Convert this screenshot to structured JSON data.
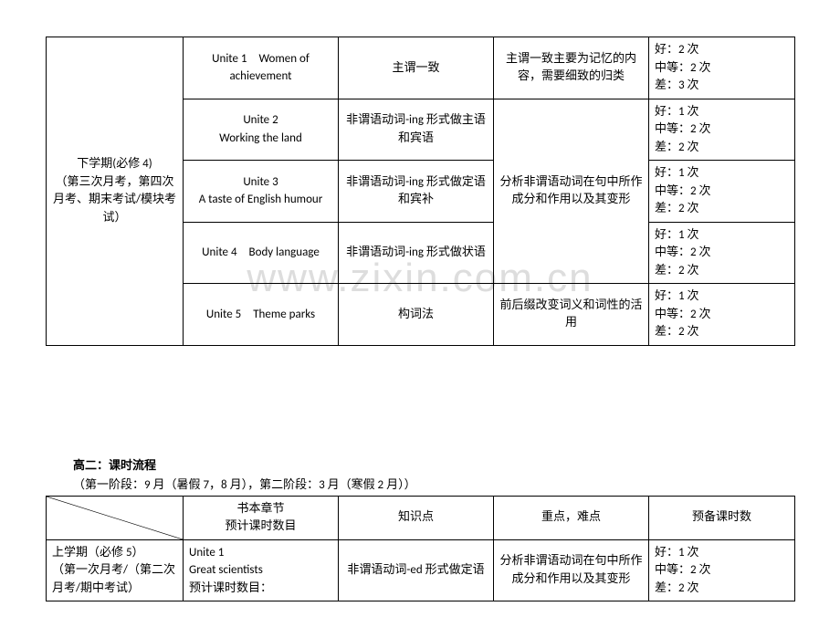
{
  "watermark": "www.zixin.com.cn",
  "table1": {
    "left_header": "下学期(必修 4)\n（第三次月考，第四次月考、期末考试/模块考试）",
    "rows": [
      {
        "unit": "Unite 1　Women of achievement",
        "point": "主谓一致",
        "note": "主谓一致主要为记忆的内容，需要细致的归类",
        "hours": "好：2 次\n中等：2 次\n差：3 次"
      },
      {
        "unit": "Unite 2\nWorking the land",
        "point": "非谓语动词-ing 形式做主语和宾语",
        "note_group": "分析非谓语动词在句中所作成分和作用以及其变形",
        "hours": "好：1 次\n中等：2 次\n差：2 次"
      },
      {
        "unit": "Unite 3\nA taste of English humour",
        "point": "非谓语动词-ing 形式做定语和宾补",
        "hours": "好：1 次\n中等：2 次\n差：2 次"
      },
      {
        "unit": "Unite 4　Body language",
        "point": "非谓语动词-ing 形式做状语",
        "hours": "好：1 次\n中等：2 次\n差：2 次"
      },
      {
        "unit": "Unite 5　Theme parks",
        "point": "构词法",
        "note": "前后缀改变词义和词性的活用",
        "hours": "好：1 次\n中等：2 次\n差：2 次"
      }
    ]
  },
  "section2": {
    "title": "高二：课时流程",
    "subtitle": "（第一阶段：9 月（暑假 7，8 月），第二阶段：3 月（寒假 2 月））"
  },
  "table2": {
    "header": {
      "col2": "书本章节\n预计课时数目",
      "col3": "知识点",
      "col4": "重点，难点",
      "col5": "预备课时数"
    },
    "row": {
      "left": "上学期（必修 5）\n（第一次月考/（第二次月考/期中考试）",
      "unit": "Unite 1\nGreat scientists\n预计课时数目：",
      "point": "非谓语动词-ed 形式做定语",
      "note": "分析非谓语动词在句中所作成分和作用以及其变形",
      "hours": "好：1 次\n中等：2 次\n差：2 次"
    }
  }
}
